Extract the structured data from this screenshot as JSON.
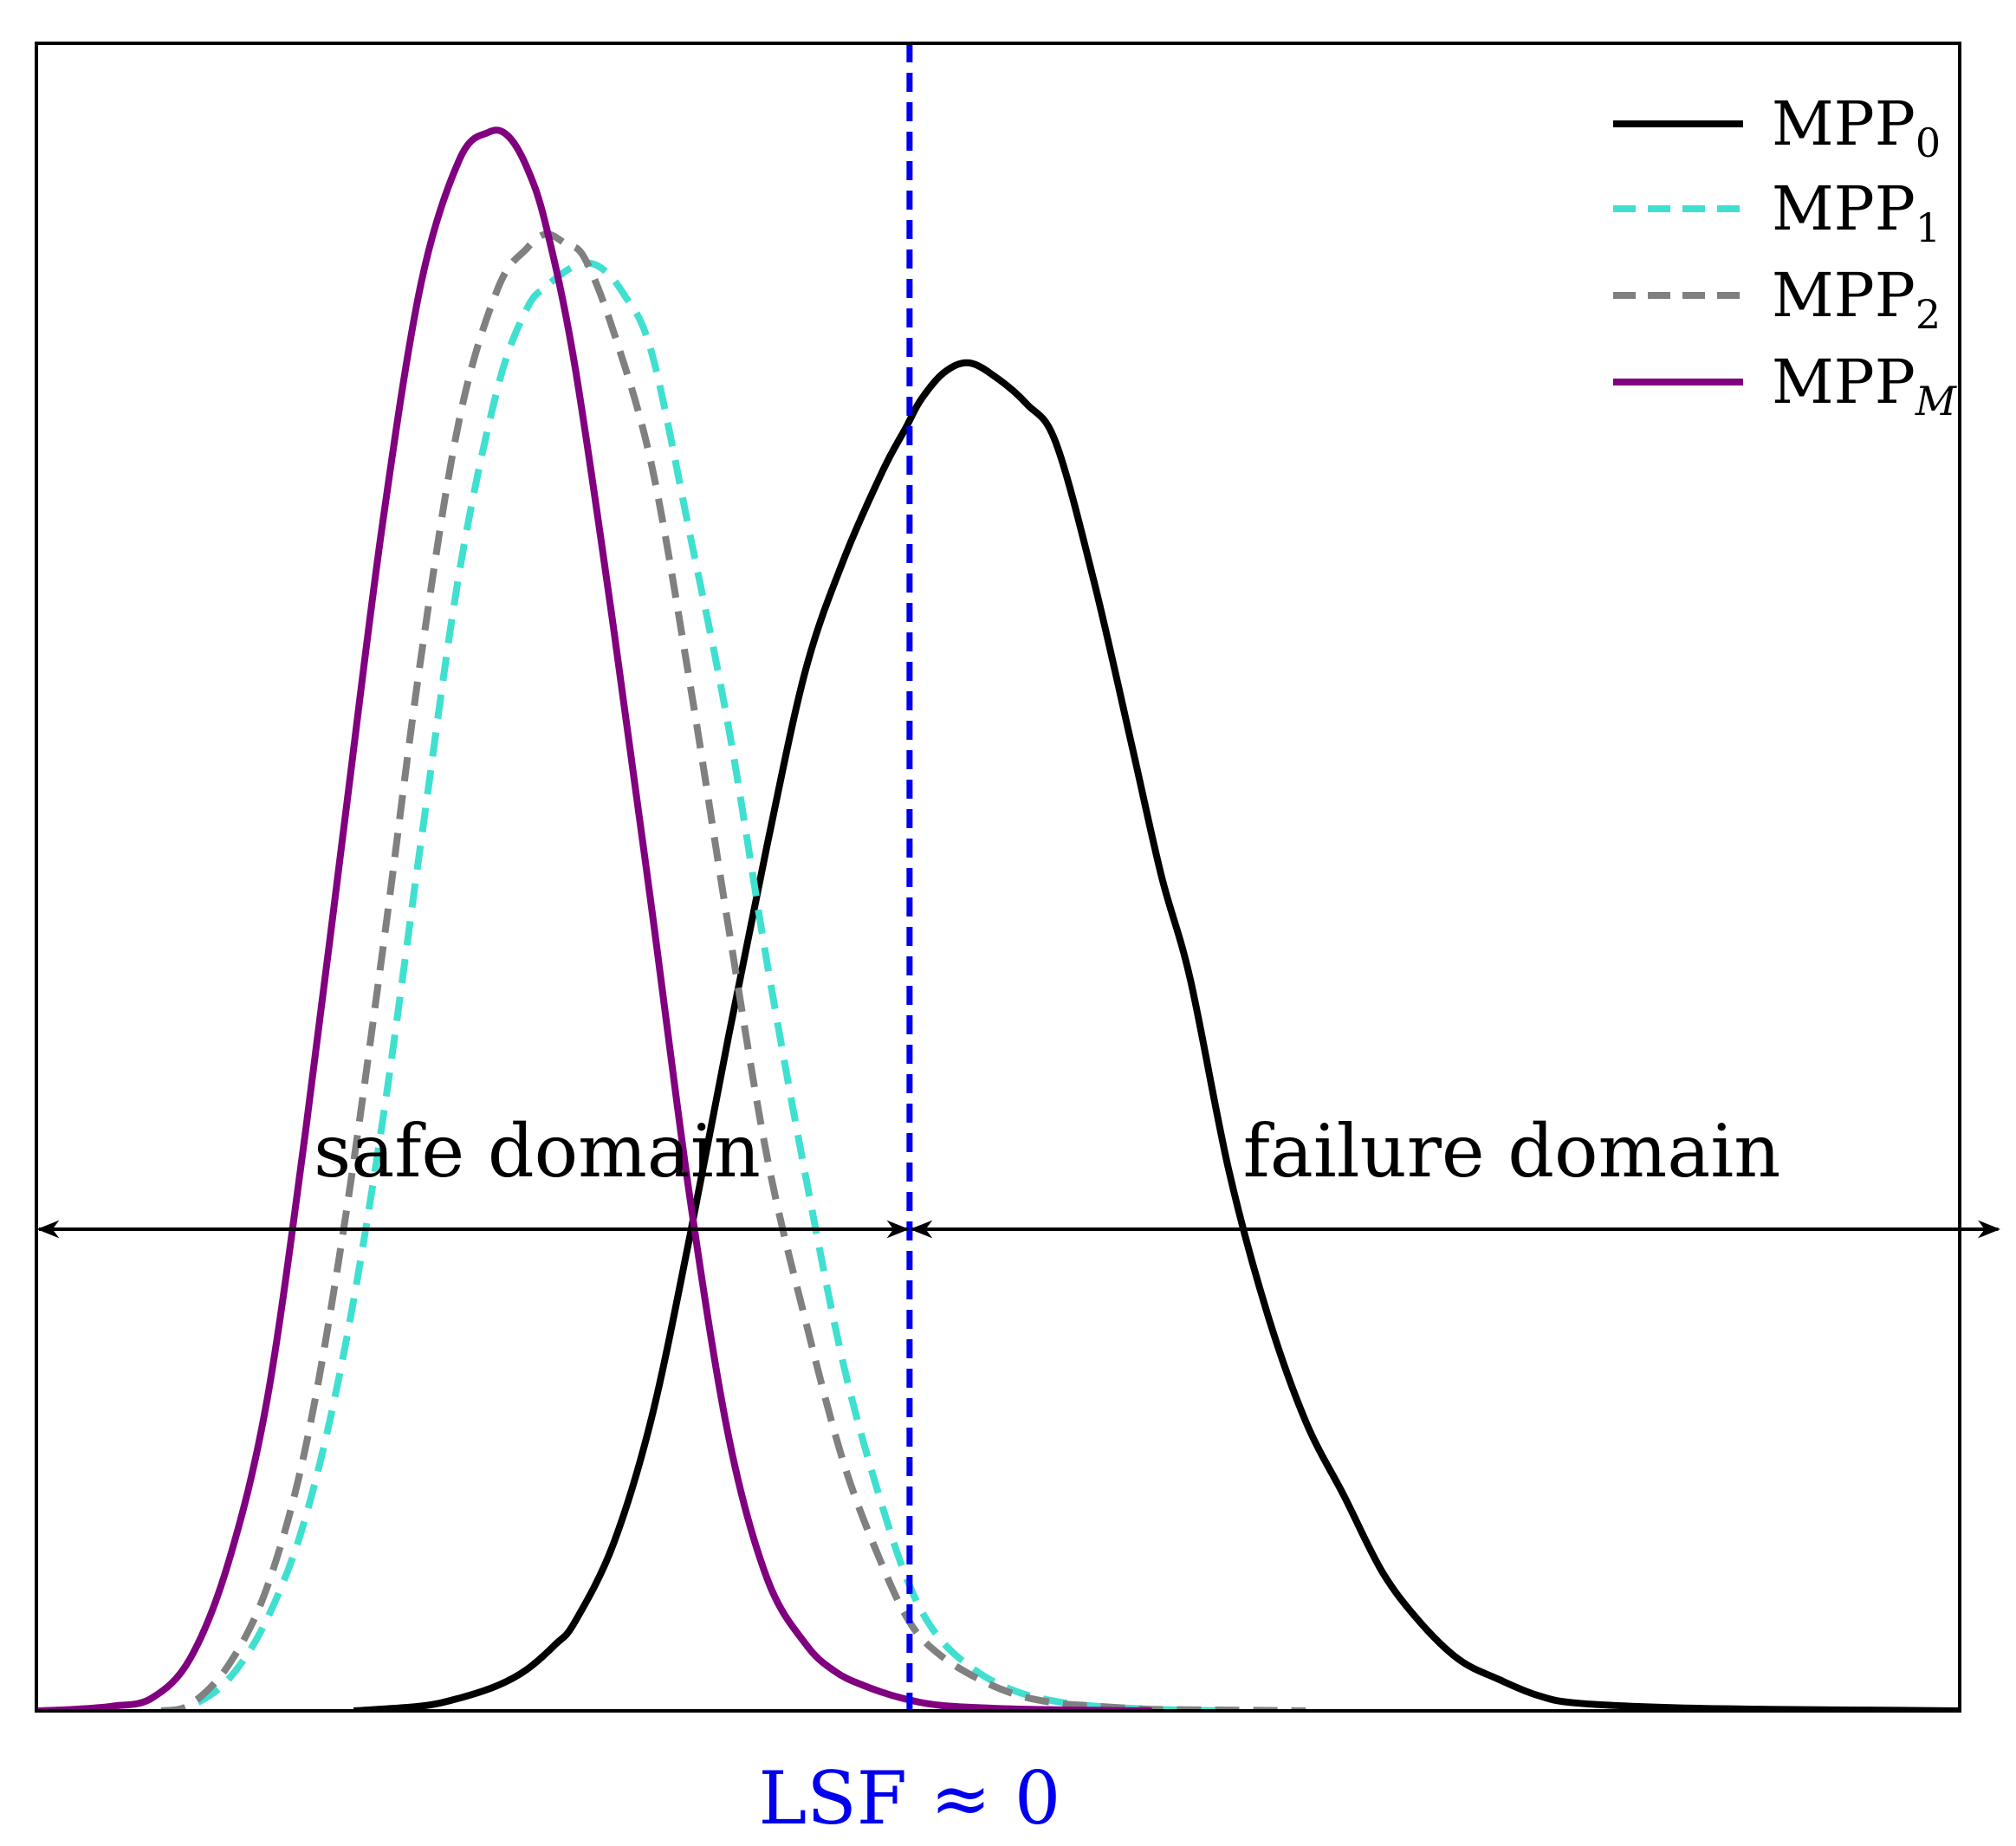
{
  "chart_data": {
    "type": "line",
    "title": "",
    "xlabel": "",
    "ylabel": "",
    "xlim": [
      0,
      100
    ],
    "ylim": [
      0,
      100
    ],
    "grid": false,
    "axis_ticks": false,
    "legend_position": "top-right",
    "series": [
      {
        "name": "MPP",
        "subscript": "0",
        "color": "#000000",
        "style": "solid",
        "x": [
          16.5,
          20,
          22,
          24,
          25.5,
          27,
          28,
          30,
          32,
          34,
          36,
          38,
          40,
          42,
          44,
          45.2,
          46,
          47.2,
          48.5,
          50,
          51.5,
          53,
          55,
          57,
          58.5,
          60,
          62,
          64,
          66,
          68,
          70,
          72,
          74,
          76,
          78,
          80,
          85,
          90,
          95,
          100
        ],
        "y": [
          0,
          0.3,
          0.8,
          1.6,
          2.6,
          4.2,
          5.6,
          10.5,
          18.5,
          30,
          42.5,
          54.5,
          65.5,
          72.5,
          78,
          80.7,
          82.5,
          84.2,
          84.8,
          83.8,
          82.2,
          79.8,
          71,
          60.5,
          52.5,
          46,
          34,
          25,
          18.2,
          13.5,
          8.7,
          5.5,
          3.2,
          2,
          1,
          0.5,
          0.2,
          0.1,
          0.05,
          0
        ]
      },
      {
        "name": "MPP",
        "subscript": "1",
        "color": "#40e0d0",
        "style": "dashed",
        "x": [
          6.5,
          8,
          10,
          12,
          14,
          16,
          18,
          20,
          22,
          24,
          25.5,
          26.5,
          28,
          29.2,
          30.5,
          32,
          34,
          36,
          38,
          40,
          42,
          44,
          45.5,
          47,
          49,
          51,
          53,
          55,
          58,
          62
        ],
        "y": [
          0,
          0.3,
          2,
          5.8,
          12.2,
          22.6,
          37.1,
          54.7,
          71.7,
          83.3,
          88.2,
          89.6,
          90.9,
          90.9,
          89.2,
          85.4,
          73.9,
          61.8,
          47,
          33.6,
          21.6,
          12.8,
          7.6,
          4.5,
          2.4,
          1.2,
          0.6,
          0.3,
          0.1,
          0
        ]
      },
      {
        "name": "MPP",
        "subscript": "2",
        "color": "#808080",
        "style": "dashed",
        "x": [
          6.5,
          8,
          10,
          12,
          14,
          16,
          18,
          20,
          22,
          24,
          25.5,
          26.5,
          27.5,
          28.5,
          30,
          32,
          34,
          36,
          38,
          40,
          42,
          44,
          45.5,
          47,
          49,
          51,
          53,
          55,
          58,
          62,
          66
        ],
        "y": [
          0,
          0.4,
          2.9,
          7.8,
          16.6,
          30.5,
          47.8,
          66.3,
          81.3,
          89.5,
          92,
          92.9,
          92.3,
          91.4,
          86.8,
          78.3,
          64.5,
          49.2,
          34.8,
          24.5,
          15.5,
          9.1,
          5.4,
          3.5,
          2,
          1,
          0.5,
          0.3,
          0.1,
          0.05,
          0
        ]
      },
      {
        "name": "MPP",
        "subscript": "M",
        "color": "#800080",
        "style": "solid",
        "x": [
          0,
          2,
          4,
          6,
          8,
          10,
          12,
          14,
          16,
          18,
          20,
          22,
          23.5,
          24.5,
          25.5,
          26.5,
          28,
          30,
          32,
          34,
          36,
          38,
          40,
          41.5,
          43,
          45,
          47,
          50,
          54,
          58
        ],
        "y": [
          0,
          0.1,
          0.3,
          0.8,
          3.3,
          9.4,
          19.6,
          36.5,
          55.7,
          74.7,
          89.8,
          97.6,
          99.3,
          99.1,
          97.1,
          93.4,
          84.6,
          68.2,
          50.4,
          32.1,
          17.2,
          8.3,
          4.2,
          2.5,
          1.6,
          0.8,
          0.35,
          0.15,
          0.05,
          0
        ]
      }
    ],
    "threshold": {
      "x": 45.4,
      "color": "#0000ee",
      "style": "dashed",
      "label": "LSF ≈ 0"
    },
    "annotations": [
      {
        "text": "safe domain",
        "direction": "both",
        "from": 0,
        "to": 45.4,
        "y": 30.3
      },
      {
        "text": "failure domain",
        "direction": "both",
        "from": 45.4,
        "to": 102,
        "y": 30.3
      }
    ]
  }
}
